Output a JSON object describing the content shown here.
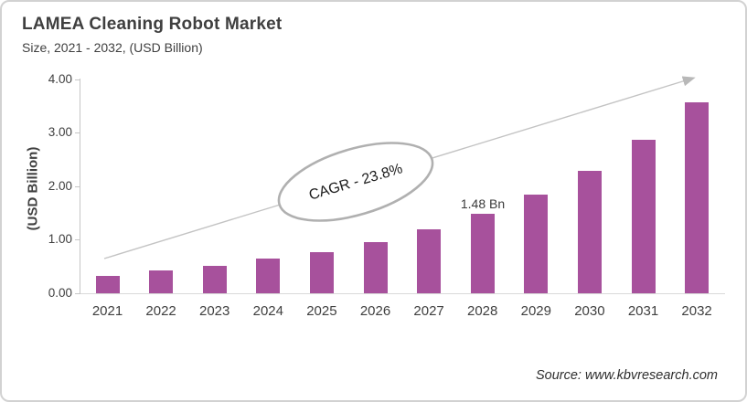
{
  "header": {
    "title": "LAMEA Cleaning Robot Market",
    "subtitle": "Size, 2021 - 2032, (USD Billion)"
  },
  "chart_data": {
    "type": "bar",
    "title": "LAMEA Cleaning Robot Market",
    "subtitle": "Size, 2021 - 2032, (USD Billion)",
    "categories": [
      "2021",
      "2022",
      "2023",
      "2024",
      "2025",
      "2026",
      "2027",
      "2028",
      "2029",
      "2030",
      "2031",
      "2032"
    ],
    "values": [
      0.33,
      0.43,
      0.52,
      0.64,
      0.77,
      0.96,
      1.19,
      1.48,
      1.85,
      2.29,
      2.86,
      3.57
    ],
    "xlabel": "",
    "ylabel": "(USD Billion)",
    "yticks": [
      "0.00",
      "1.00",
      "2.00",
      "3.00",
      "4.00"
    ],
    "ylim": [
      0,
      4
    ],
    "grid": false,
    "legend": "none",
    "bar_color": "#a7519c",
    "axis_color": "#c6c6c6",
    "trend_arrow_color": "#c3c3c3"
  },
  "annotations": {
    "cagr_label": "CAGR - 23.8%",
    "value_label": "1.48 Bn"
  },
  "footer": {
    "source": "Source: www.kbvresearch.com"
  }
}
